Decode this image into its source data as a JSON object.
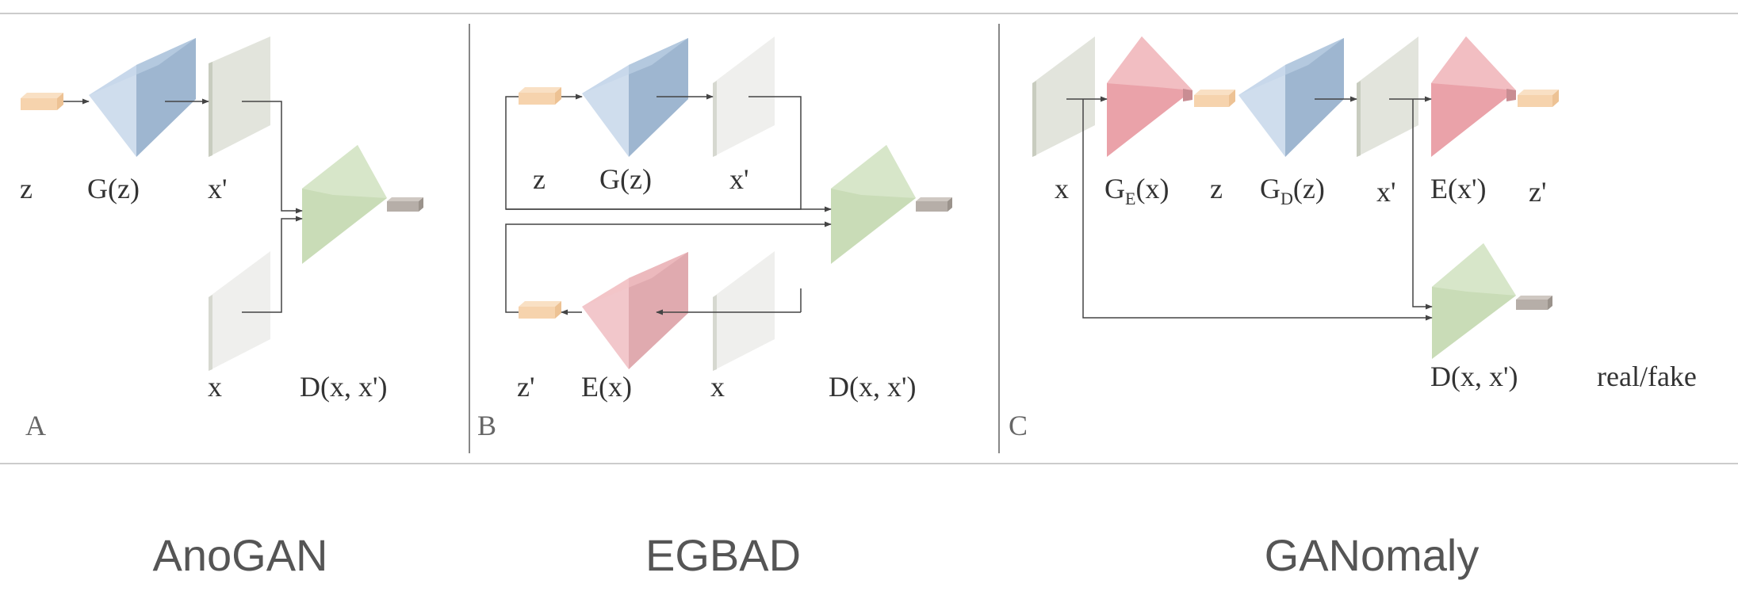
{
  "panels": [
    {
      "letter": "A",
      "labels": {
        "z": "z",
        "gz": "G(z)",
        "xp": "x'",
        "x": "x",
        "d": "D(x, x')"
      }
    },
    {
      "letter": "B",
      "labels": {
        "z": "z",
        "gz": "G(z)",
        "xp": "x'",
        "zp": "z'",
        "ex": "E(x)",
        "x": "x",
        "d": "D(x, x')"
      }
    },
    {
      "letter": "C",
      "labels": {
        "x": "x",
        "ge_main": "G",
        "ge_sub": "E",
        "ge_arg": "(x)",
        "z": "z",
        "gd_main": "G",
        "gd_sub": "D",
        "gd_arg": "(z)",
        "xp": "x'",
        "exp": "E(x')",
        "zp": "z'",
        "d": "D(x, x')",
        "realfake": "real/fake"
      }
    }
  ],
  "captions": [
    "AnoGAN",
    "EGBAD",
    "GANomaly"
  ],
  "colors": {
    "latent": "#f6d3ad",
    "generator": "#a8c1de",
    "encoder": "#eaa2a9",
    "discriminator": "#c9dcb7",
    "output": "#b6aea8",
    "image_dark": "#d9dcd2",
    "image_light": "#ececea",
    "line": "#444444",
    "separator": "#cccccc"
  }
}
